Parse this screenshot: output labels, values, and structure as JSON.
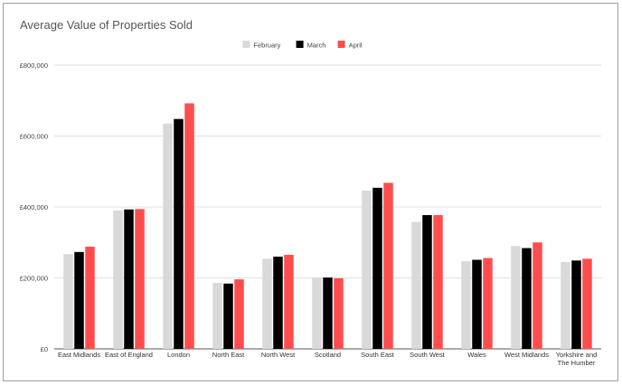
{
  "chart_data": {
    "type": "bar",
    "title": "Average Value of Properties Sold",
    "categories": [
      "East Midlands",
      "East of England",
      "London",
      "North East",
      "North West",
      "Scotland",
      "South East",
      "South West",
      "Wales",
      "West Midlands",
      "Yorkshire and The Humber"
    ],
    "category_lines": [
      [
        "East Midlands"
      ],
      [
        "East of England"
      ],
      [
        "London"
      ],
      [
        "North East"
      ],
      [
        "North West"
      ],
      [
        "Scotland"
      ],
      [
        "South East"
      ],
      [
        "South West"
      ],
      [
        "Wales"
      ],
      [
        "West Midlands"
      ],
      [
        "Yorkshire and",
        "The Humber"
      ]
    ],
    "series": [
      {
        "name": "February",
        "color": "#d9d9d9",
        "values": [
          267000,
          390000,
          635000,
          186000,
          254000,
          201000,
          446000,
          358000,
          247000,
          290000,
          245000
        ]
      },
      {
        "name": "March",
        "color": "#000000",
        "values": [
          273000,
          393000,
          648000,
          184000,
          260000,
          201000,
          454000,
          377000,
          251000,
          284000,
          249000
        ]
      },
      {
        "name": "April",
        "color": "#ff4d4d",
        "values": [
          288000,
          394000,
          692000,
          196000,
          265000,
          199000,
          468000,
          377000,
          256000,
          300000,
          254000
        ]
      }
    ],
    "yticks": [
      0,
      200000,
      400000,
      600000,
      800000
    ],
    "ytick_labels": [
      "£0",
      "£200,000",
      "£400,000",
      "£600,000",
      "£800,000"
    ],
    "ylim": [
      0,
      800000
    ],
    "grid": true,
    "legend_position": "top-center"
  }
}
